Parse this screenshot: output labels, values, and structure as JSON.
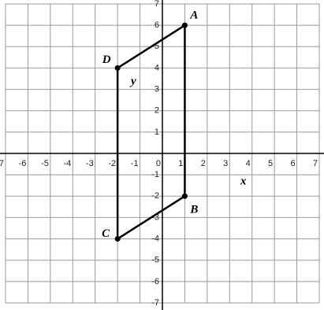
{
  "chart_data": {
    "type": "polygon",
    "x_label": "x",
    "y_label": "y",
    "xlim": [
      -7,
      7
    ],
    "ylim": [
      -7,
      7
    ],
    "xticks": [
      -7,
      -6,
      -5,
      -4,
      -3,
      -2,
      -1,
      0,
      1,
      2,
      3,
      4,
      5,
      6,
      7
    ],
    "yticks": [
      -7,
      -6,
      -5,
      -4,
      -3,
      -2,
      -1,
      1,
      2,
      3,
      4,
      5,
      6,
      7
    ],
    "grid": true,
    "series": [
      {
        "name": "ABCD",
        "color": "#000000",
        "point_labels": [
          "A",
          "B",
          "C",
          "D"
        ],
        "x": [
          1,
          1,
          -2,
          -2
        ],
        "values": [
          6,
          -2,
          -4,
          4
        ]
      }
    ]
  }
}
